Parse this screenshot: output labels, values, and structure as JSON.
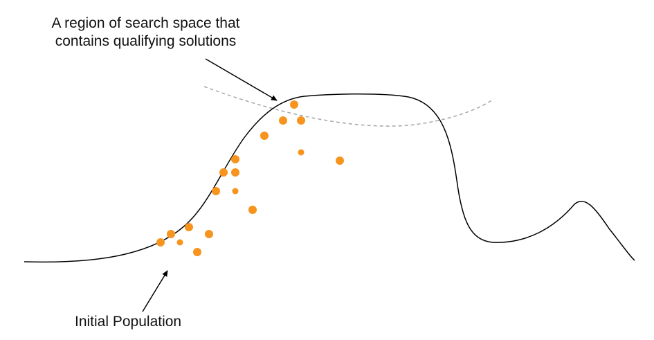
{
  "annotations": {
    "region_line1": "A region of search space that",
    "region_line2": "contains qualifying solutions",
    "initial_population": "Initial Population"
  },
  "colors": {
    "curve": "#000000",
    "region_boundary": "#a6a6a6",
    "population_dot": "#f7941d",
    "text": "#111111"
  }
}
